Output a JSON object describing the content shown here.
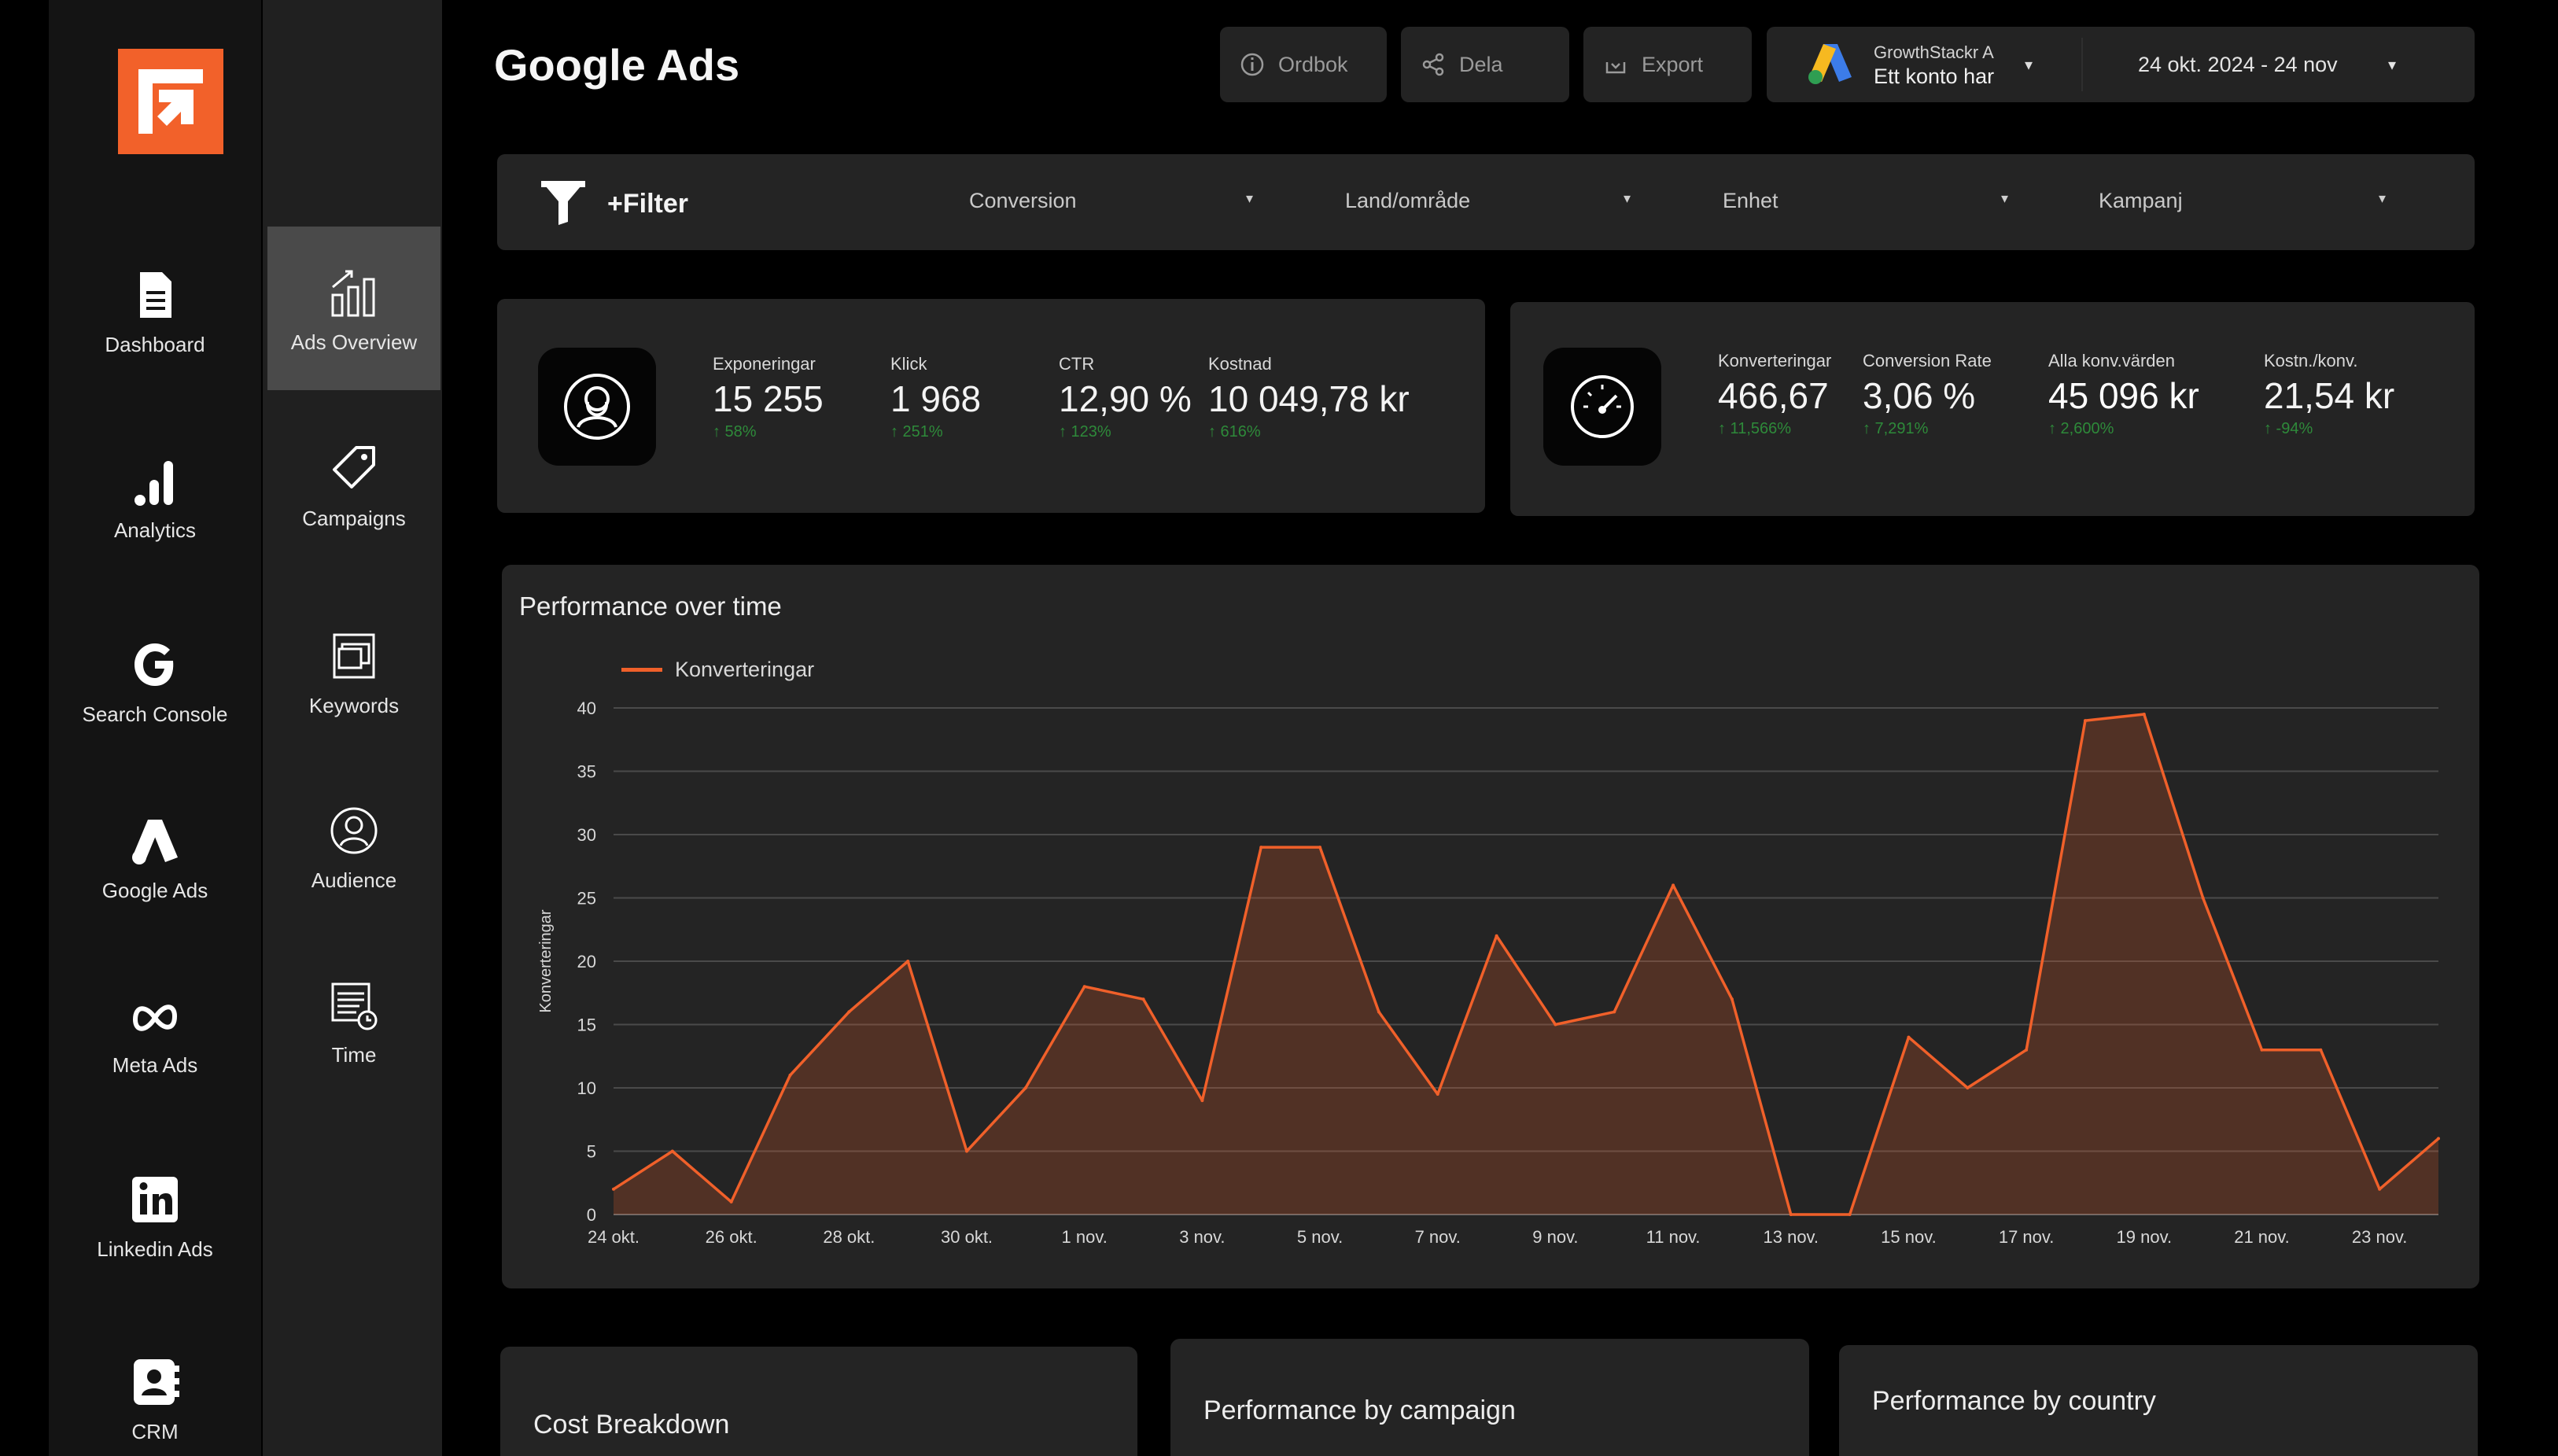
{
  "nav_primary": [
    {
      "label": "Dashboard",
      "icon": "document-icon"
    },
    {
      "label": "Analytics",
      "icon": "bar-chart-icon"
    },
    {
      "label": "Search Console",
      "icon": "google-g-icon"
    },
    {
      "label": "Google Ads",
      "icon": "google-ads-icon"
    },
    {
      "label": "Meta Ads",
      "icon": "meta-infinity-icon"
    },
    {
      "label": "Linkedin Ads",
      "icon": "linkedin-icon"
    },
    {
      "label": "CRM",
      "icon": "contact-card-icon"
    }
  ],
  "nav_secondary": [
    {
      "label": "Ads Overview",
      "icon": "chart-arrow-icon",
      "active": true
    },
    {
      "label": "Campaigns",
      "icon": "tag-icon"
    },
    {
      "label": "Keywords",
      "icon": "stacked-cards-icon"
    },
    {
      "label": "Audience",
      "icon": "user-circle-icon"
    },
    {
      "label": "Time",
      "icon": "calendar-clock-icon"
    }
  ],
  "header": {
    "title": "Google Ads",
    "buttons": {
      "dictionary": "Ordbok",
      "share": "Dela",
      "export": "Export"
    },
    "account_name": "GrowthStackr A",
    "account_sub": "Ett konto har",
    "date_range": "24 okt. 2024 - 24 nov"
  },
  "filter": {
    "label": "+Filter",
    "dropdowns": [
      "Conversion",
      "Land/område",
      "Enhet",
      "Kampanj"
    ]
  },
  "kpis_left": [
    {
      "label": "Exponeringar",
      "value": "15 255",
      "change": "↑ 58%"
    },
    {
      "label": "Klick",
      "value": "1 968",
      "change": "↑ 251%"
    },
    {
      "label": "CTR",
      "value": "12,90 %",
      "change": "↑ 123%"
    },
    {
      "label": "Kostnad",
      "value": "10 049,78 kr",
      "change": "↑ 616%"
    }
  ],
  "kpis_right": [
    {
      "label": "Konverteringar",
      "value": "466,67",
      "change": "↑ 11,566%"
    },
    {
      "label": "Conversion Rate",
      "value": "3,06 %",
      "change": "↑ 7,291%"
    },
    {
      "label": "Alla konv.värden",
      "value": "45 096 kr",
      "change": "↑ 2,600%"
    },
    {
      "label": "Kostn./konv.",
      "value": "21,54 kr",
      "change": "↑ -94%"
    }
  ],
  "colors": {
    "accent": "#f0602a",
    "positive": "#2e8a3a"
  },
  "chart_data": {
    "type": "area",
    "title": "Performance over time",
    "ylabel": "Konverteringar",
    "xlabel": "",
    "ylim": [
      0,
      40
    ],
    "yticks": [
      0,
      5,
      10,
      15,
      20,
      25,
      30,
      35,
      40
    ],
    "x": [
      "24 okt.",
      "25 okt.",
      "26 okt.",
      "27 okt.",
      "28 okt.",
      "29 okt.",
      "30 okt.",
      "31 okt.",
      "1 nov.",
      "2 nov.",
      "3 nov.",
      "4 nov.",
      "5 nov.",
      "6 nov.",
      "7 nov.",
      "8 nov.",
      "9 nov.",
      "10 nov.",
      "11 nov.",
      "12 nov.",
      "13 nov.",
      "14 nov.",
      "15 nov.",
      "16 nov.",
      "17 nov.",
      "18 nov.",
      "19 nov.",
      "20 nov.",
      "21 nov.",
      "22 nov.",
      "23 nov.",
      "24 nov."
    ],
    "xtick_labels": [
      "24 okt.",
      "26 okt.",
      "28 okt.",
      "30 okt.",
      "1 nov.",
      "3 nov.",
      "5 nov.",
      "7 nov.",
      "9 nov.",
      "11 nov.",
      "13 nov.",
      "15 nov.",
      "17 nov.",
      "19 nov.",
      "21 nov.",
      "23 nov."
    ],
    "series": [
      {
        "name": "Konverteringar",
        "color": "#f0602a",
        "values": [
          2,
          5,
          1,
          11,
          16,
          20,
          5,
          10,
          18,
          17,
          9,
          29,
          29,
          16,
          9.5,
          22,
          15,
          16,
          26,
          17,
          0,
          0,
          14,
          10,
          13,
          39,
          39.5,
          25,
          13,
          13,
          2,
          6
        ]
      }
    ],
    "grid": true,
    "legend_position": "top-left"
  },
  "bottom_cards": {
    "cost": "Cost Breakdown",
    "campaign": "Performance by campaign",
    "country": "Performance by country"
  }
}
